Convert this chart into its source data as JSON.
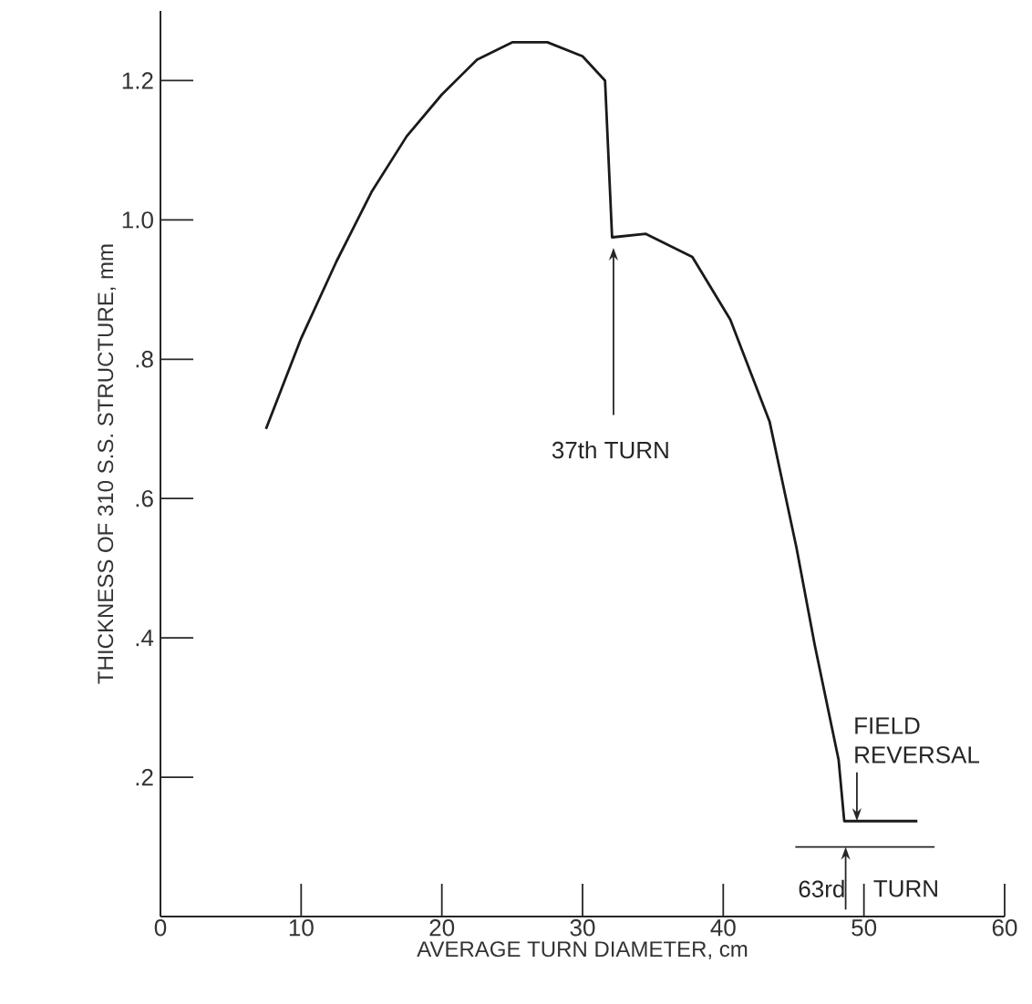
{
  "chart_data": {
    "type": "line",
    "xlabel": "AVERAGE TURN DIAMETER, cm",
    "ylabel": "THICKNESS OF 310 S.S. STRUCTURE, mm",
    "x": [
      7.5,
      10,
      12.5,
      15,
      17.5,
      20,
      22.5,
      25,
      27.5,
      30,
      31.6,
      32.1,
      34.5,
      37.8,
      40.5,
      43.3,
      45.2,
      46.5,
      48.2,
      48.6,
      53.8
    ],
    "series": [
      {
        "color": "#1a1a1a",
        "values": [
          0.7,
          0.83,
          0.94,
          1.04,
          1.12,
          1.18,
          1.23,
          1.255,
          1.255,
          1.235,
          1.2,
          0.975,
          0.98,
          0.947,
          0.857,
          0.71,
          0.53,
          0.39,
          0.225,
          0.137,
          0.137
        ]
      }
    ],
    "xlim": [
      0,
      60
    ],
    "ylim": [
      0,
      1.3
    ],
    "xticks": [
      0,
      10,
      20,
      30,
      40,
      50,
      60
    ],
    "yticks": [
      {
        "value": 0.2,
        "label": ".2"
      },
      {
        "value": 0.4,
        "label": ".4"
      },
      {
        "value": 0.6,
        "label": ".6"
      },
      {
        "value": 0.8,
        "label": ".8"
      },
      {
        "value": 1.0,
        "label": "1.0"
      },
      {
        "value": 1.2,
        "label": "1.2"
      }
    ],
    "grid": false,
    "marker": "none",
    "ref_lines": [
      {
        "axis": "y",
        "value": 0.1
      }
    ],
    "line_style": "solid",
    "annotations": [
      "37th TURN",
      {
        "text": "FIELD REVERSAL",
        "x": 49.5,
        "y": 0.137
      },
      "63rd",
      "TURN"
    ]
  }
}
